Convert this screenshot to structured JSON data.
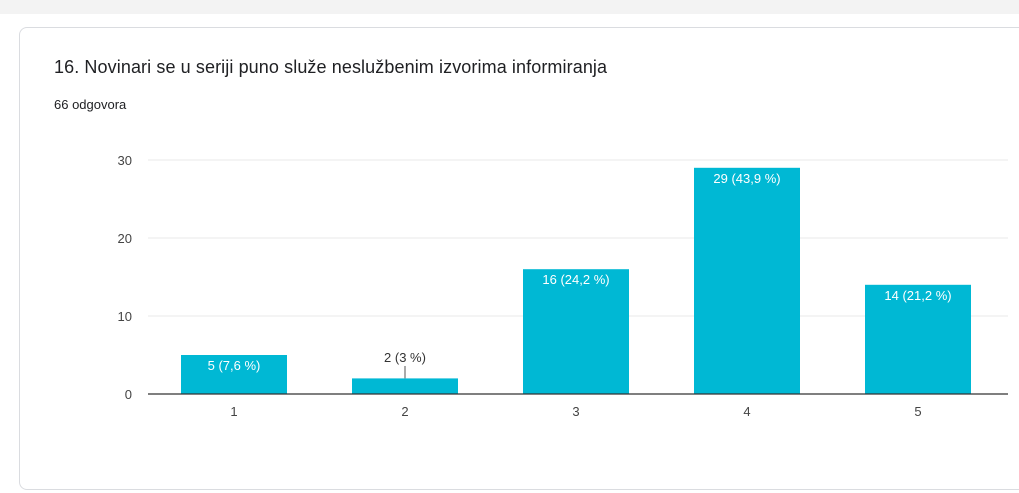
{
  "question": {
    "title": "16. Novinari se u seriji puno služe neslužbenim izvorima informiranja",
    "responses": "66 odgovora"
  },
  "colors": {
    "bar": "#00b8d4",
    "grid": "#e8e8e8",
    "axis": "#333333",
    "label_inside": "#ffffff",
    "label_outside": "#333333"
  },
  "chart_data": {
    "type": "bar",
    "categories": [
      "1",
      "2",
      "3",
      "4",
      "5"
    ],
    "values": [
      5,
      2,
      16,
      29,
      14
    ],
    "data_labels": [
      "5 (7,6 %)",
      "2 (3 %)",
      "16 (24,2 %)",
      "29 (43,9 %)",
      "14 (21,2 %)"
    ],
    "yticks": [
      0,
      10,
      20,
      30
    ],
    "ylim": [
      0,
      30
    ],
    "grid": true,
    "title": "",
    "xlabel": "",
    "ylabel": ""
  }
}
